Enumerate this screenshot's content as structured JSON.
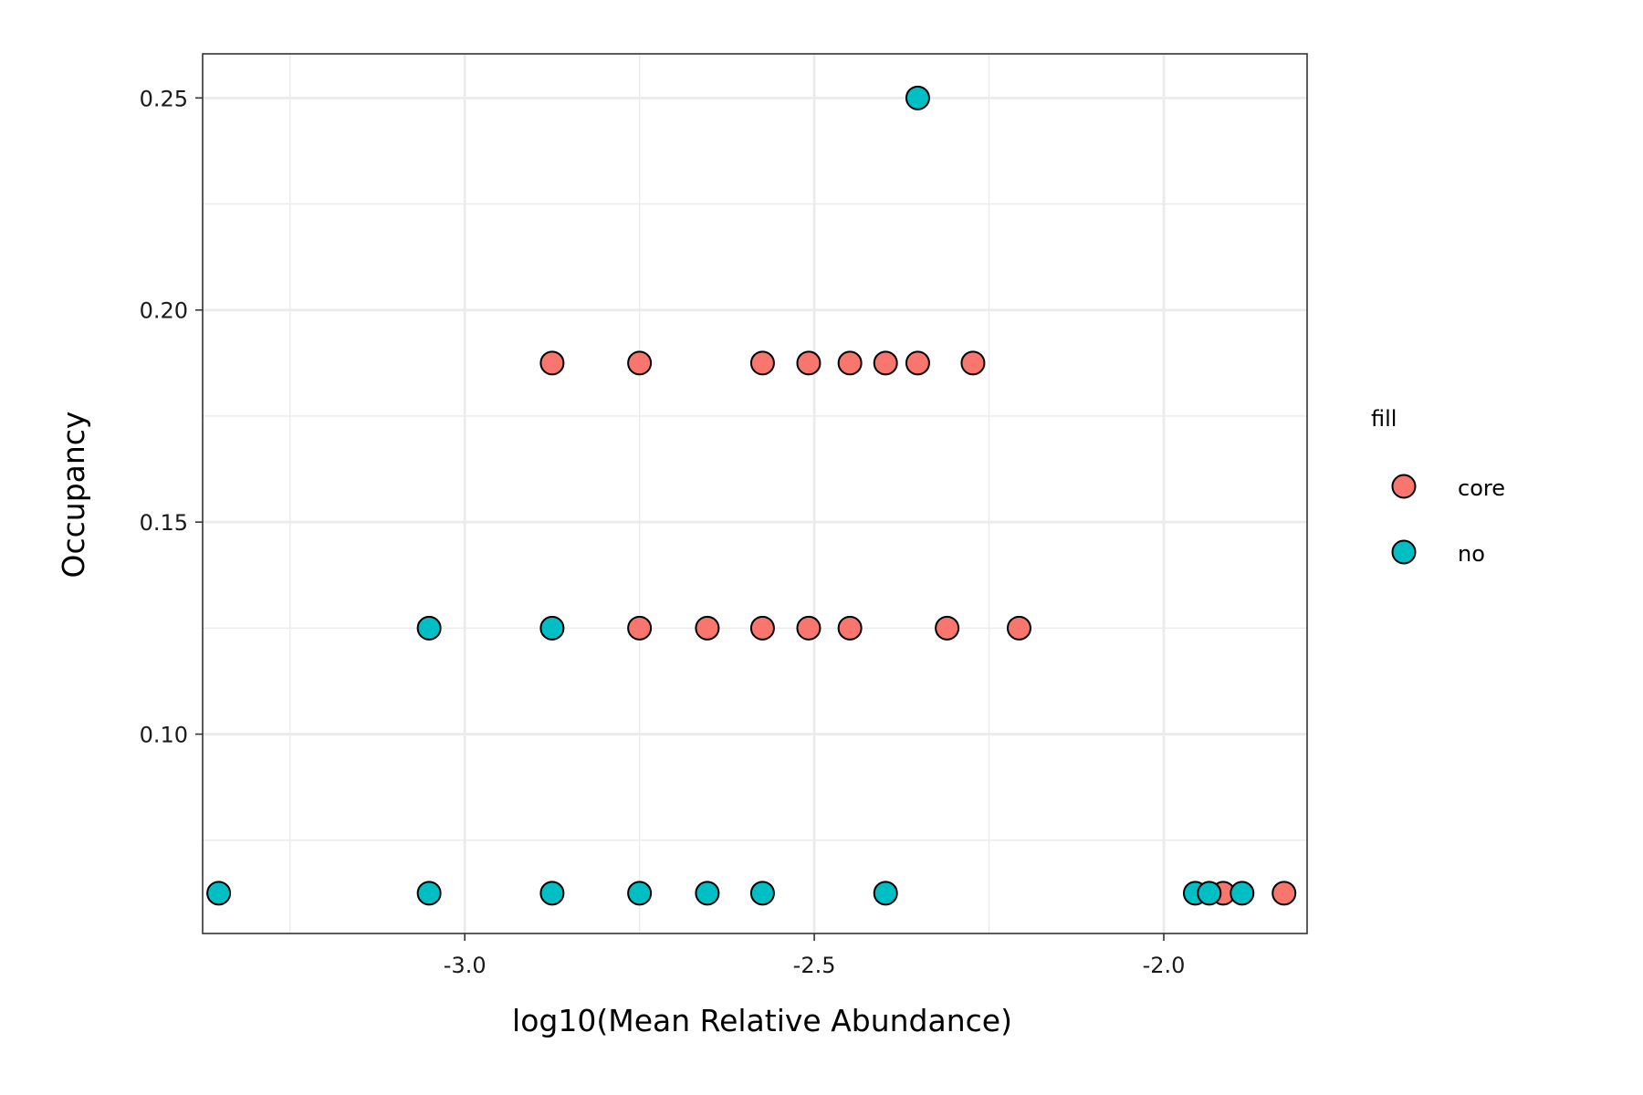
{
  "chart_data": {
    "type": "scatter",
    "xlabel": "log10(Mean Relative Abundance)",
    "ylabel": "Occupancy",
    "xlim": [
      -3.375,
      -1.795
    ],
    "ylim": [
      0.053,
      0.2604
    ],
    "x_ticks": [
      -3.0,
      -2.5,
      -2.0
    ],
    "x_tick_labels": [
      "-3.0",
      "-2.5",
      "-2.0"
    ],
    "y_ticks": [
      0.1,
      0.15,
      0.2,
      0.25
    ],
    "y_tick_labels": [
      "0.10",
      "0.15",
      "0.20",
      "0.25"
    ],
    "grid": true,
    "legend": {
      "title": "fill",
      "position": "right",
      "entries": [
        {
          "label": "core",
          "color": "#F8766D"
        },
        {
          "label": "no",
          "color": "#00BFC4"
        }
      ]
    },
    "series": [
      {
        "name": "core",
        "color": "#F8766D",
        "points": [
          {
            "x": -2.875,
            "y": 0.1875
          },
          {
            "x": -2.75,
            "y": 0.1875
          },
          {
            "x": -2.574,
            "y": 0.1875
          },
          {
            "x": -2.508,
            "y": 0.1875
          },
          {
            "x": -2.449,
            "y": 0.1875
          },
          {
            "x": -2.398,
            "y": 0.1875
          },
          {
            "x": -2.352,
            "y": 0.1875
          },
          {
            "x": -2.273,
            "y": 0.1875
          },
          {
            "x": -2.75,
            "y": 0.125
          },
          {
            "x": -2.653,
            "y": 0.125
          },
          {
            "x": -2.574,
            "y": 0.125
          },
          {
            "x": -2.508,
            "y": 0.125
          },
          {
            "x": -2.449,
            "y": 0.125
          },
          {
            "x": -2.31,
            "y": 0.125
          },
          {
            "x": -2.207,
            "y": 0.125
          },
          {
            "x": -1.915,
            "y": 0.0625
          },
          {
            "x": -1.828,
            "y": 0.0625
          }
        ]
      },
      {
        "name": "no",
        "color": "#00BFC4",
        "points": [
          {
            "x": -2.352,
            "y": 0.25
          },
          {
            "x": -3.051,
            "y": 0.125
          },
          {
            "x": -2.875,
            "y": 0.125
          },
          {
            "x": -3.352,
            "y": 0.0625
          },
          {
            "x": -3.051,
            "y": 0.0625
          },
          {
            "x": -2.875,
            "y": 0.0625
          },
          {
            "x": -2.75,
            "y": 0.0625
          },
          {
            "x": -2.653,
            "y": 0.0625
          },
          {
            "x": -2.574,
            "y": 0.0625
          },
          {
            "x": -2.398,
            "y": 0.0625
          },
          {
            "x": -1.955,
            "y": 0.0625
          },
          {
            "x": -1.935,
            "y": 0.0625
          },
          {
            "x": -1.888,
            "y": 0.0625
          }
        ]
      }
    ]
  }
}
